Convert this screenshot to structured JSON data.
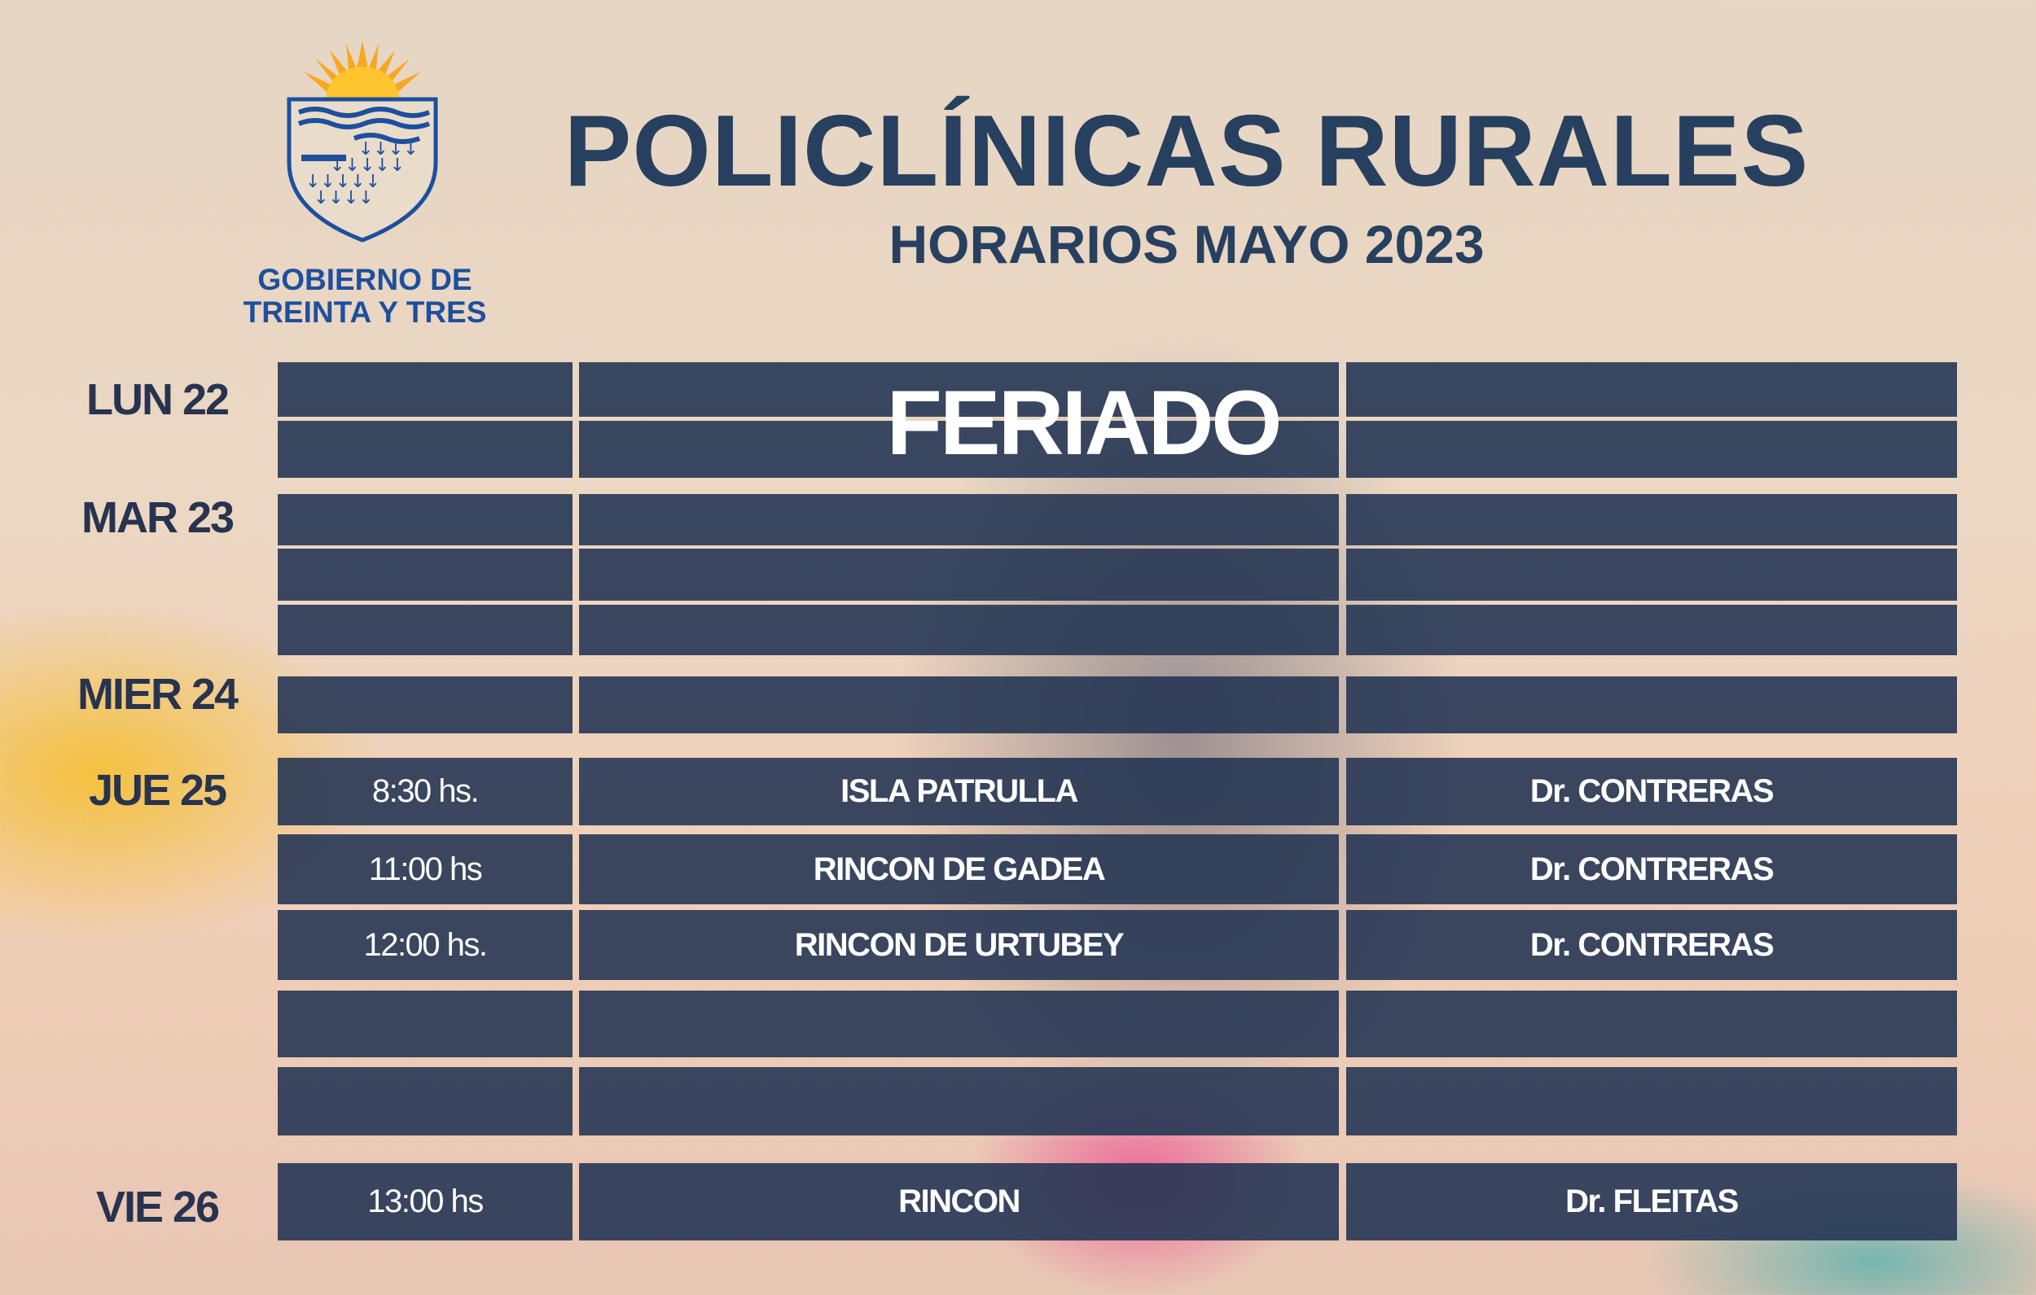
{
  "logo": {
    "line1": "GOBIERNO DE",
    "line2": "TREINTA Y TRES",
    "colors": {
      "sun": "#f7b12a",
      "shield": "#1d4f9e"
    }
  },
  "header": {
    "title": "POLICLÍNICAS RURALES",
    "subtitle": "HORARIOS MAYO 2023"
  },
  "colors": {
    "navy": "#27405f",
    "cell": "#263654"
  },
  "days": [
    {
      "label": "LUN 22",
      "note": "FERIADO"
    },
    {
      "label": "MAR 23"
    },
    {
      "label": "MIER 24"
    },
    {
      "label": "JUE 25"
    },
    {
      "label": "VIE 26"
    }
  ],
  "rows": [
    {
      "day": "LUN 22",
      "time": "",
      "place": "",
      "doctor": ""
    },
    {
      "day": "LUN 22",
      "time": "",
      "place": "",
      "doctor": ""
    },
    {
      "day": "MAR 23",
      "time": "",
      "place": "",
      "doctor": ""
    },
    {
      "day": "MAR 23",
      "time": "",
      "place": "",
      "doctor": ""
    },
    {
      "day": "MAR 23",
      "time": "",
      "place": "",
      "doctor": ""
    },
    {
      "day": "MIER 24",
      "time": "",
      "place": "",
      "doctor": ""
    },
    {
      "day": "JUE 25",
      "time": "8:30 hs.",
      "place": "ISLA PATRULLA",
      "doctor": "Dr.  CONTRERAS"
    },
    {
      "day": "JUE 25",
      "time": "11:00 hs",
      "place": "RINCON DE GADEA",
      "doctor": "Dr. CONTRERAS"
    },
    {
      "day": "JUE 25",
      "time": "12:00 hs.",
      "place": "RINCON DE URTUBEY",
      "doctor": "Dr.  CONTRERAS"
    },
    {
      "day": "JUE 25",
      "time": "",
      "place": "",
      "doctor": ""
    },
    {
      "day": "JUE 25",
      "time": "",
      "place": "",
      "doctor": ""
    },
    {
      "day": "VIE 26",
      "time": "13:00 hs",
      "place": "RINCON",
      "doctor": "Dr. FLEITAS"
    }
  ]
}
